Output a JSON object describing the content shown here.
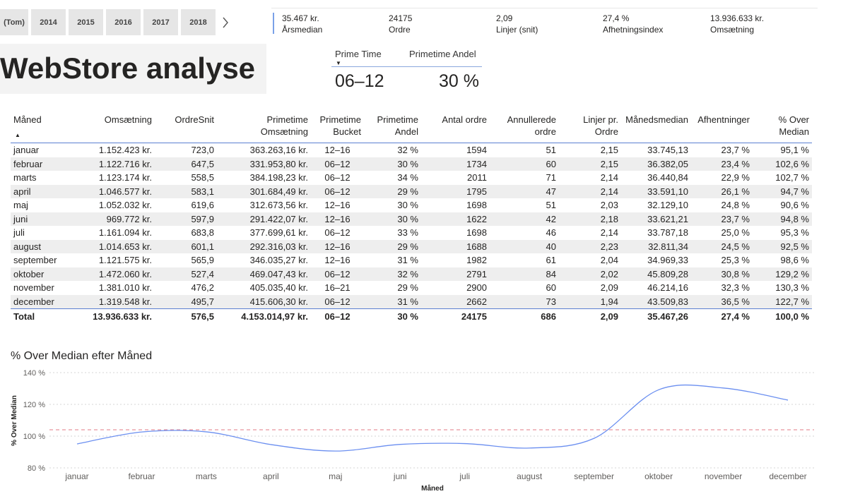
{
  "year_slicer": {
    "items": [
      "(Tom)",
      "2014",
      "2015",
      "2016",
      "2017",
      "2018"
    ],
    "next_icon": "chevron-right-icon"
  },
  "kpis": [
    {
      "value": "35.467 kr.",
      "label": "Årsmedian"
    },
    {
      "value": "24175",
      "label": "Ordre"
    },
    {
      "value": "2,09",
      "label": "Linjer (snit)"
    },
    {
      "value": "27,4 %",
      "label": "Afhetningsindex"
    },
    {
      "value": "13.936.633 kr.",
      "label": "Omsætning"
    }
  ],
  "page_title": "WebStore analyse",
  "prime_card": {
    "header_time": "Prime Time",
    "header_share": "Primetime Andel",
    "time": "06–12",
    "share": "30 %"
  },
  "table": {
    "headers": [
      "Måned",
      "Omsætning",
      "OrdreSnit",
      "Primetime Omsætning",
      "Primetime Bucket",
      "Primetime Andel",
      "Antal ordre",
      "Annullerede ordre",
      "Linjer pr. Ordre",
      "Månedsmedian",
      "Afhentninger",
      "% Over Median"
    ],
    "rows": [
      [
        "januar",
        "1.152.423 kr.",
        "723,0",
        "363.263,16 kr.",
        "12–16",
        "32 %",
        "1594",
        "51",
        "2,15",
        "33.745,13",
        "23,7 %",
        "95,1 %"
      ],
      [
        "februar",
        "1.122.716 kr.",
        "647,5",
        "331.953,80 kr.",
        "06–12",
        "30 %",
        "1734",
        "60",
        "2,15",
        "36.382,05",
        "23,4 %",
        "102,6 %"
      ],
      [
        "marts",
        "1.123.174 kr.",
        "558,5",
        "384.198,23 kr.",
        "06–12",
        "34 %",
        "2011",
        "71",
        "2,14",
        "36.440,84",
        "22,9 %",
        "102,7 %"
      ],
      [
        "april",
        "1.046.577 kr.",
        "583,1",
        "301.684,49 kr.",
        "06–12",
        "29 %",
        "1795",
        "47",
        "2,14",
        "33.591,10",
        "26,1 %",
        "94,7 %"
      ],
      [
        "maj",
        "1.052.032 kr.",
        "619,6",
        "312.673,56 kr.",
        "12–16",
        "30 %",
        "1698",
        "51",
        "2,03",
        "32.129,10",
        "24,8 %",
        "90,6 %"
      ],
      [
        "juni",
        "969.772 kr.",
        "597,9",
        "291.422,07 kr.",
        "12–16",
        "30 %",
        "1622",
        "42",
        "2,18",
        "33.621,21",
        "23,7 %",
        "94,8 %"
      ],
      [
        "juli",
        "1.161.094 kr.",
        "683,8",
        "377.699,61 kr.",
        "06–12",
        "33 %",
        "1698",
        "46",
        "2,14",
        "33.787,18",
        "25,0 %",
        "95,3 %"
      ],
      [
        "august",
        "1.014.653 kr.",
        "601,1",
        "292.316,03 kr.",
        "12–16",
        "29 %",
        "1688",
        "40",
        "2,23",
        "32.811,34",
        "24,5 %",
        "92,5 %"
      ],
      [
        "september",
        "1.121.575 kr.",
        "565,9",
        "346.035,27 kr.",
        "12–16",
        "31 %",
        "1982",
        "61",
        "2,04",
        "34.969,33",
        "25,3 %",
        "98,6 %"
      ],
      [
        "oktober",
        "1.472.060 kr.",
        "527,4",
        "469.047,43 kr.",
        "06–12",
        "32 %",
        "2791",
        "84",
        "2,02",
        "45.809,28",
        "30,8 %",
        "129,2 %"
      ],
      [
        "november",
        "1.381.010 kr.",
        "476,2",
        "405.035,40 kr.",
        "16–21",
        "29 %",
        "2900",
        "60",
        "2,09",
        "46.214,16",
        "32,3 %",
        "130,3 %"
      ],
      [
        "december",
        "1.319.548 kr.",
        "495,7",
        "415.606,30 kr.",
        "06–12",
        "31 %",
        "2662",
        "73",
        "1,94",
        "43.509,83",
        "36,5 %",
        "122,7 %"
      ]
    ],
    "total": [
      "Total",
      "13.936.633 kr.",
      "576,5",
      "4.153.014,97 kr.",
      "06–12",
      "30 %",
      "24175",
      "686",
      "2,09",
      "35.467,26",
      "27,4 %",
      "100,0 %"
    ]
  },
  "chart_data": {
    "type": "line",
    "title": "% Over Median efter Måned",
    "xlabel": "Måned",
    "ylabel": "% Over Median",
    "categories": [
      "januar",
      "februar",
      "marts",
      "april",
      "maj",
      "juni",
      "juli",
      "august",
      "september",
      "oktober",
      "november",
      "december"
    ],
    "series": [
      {
        "values": [
          95.1,
          102.6,
          102.7,
          94.7,
          90.6,
          94.8,
          95.3,
          92.5,
          98.6,
          129.2,
          130.3,
          122.7
        ]
      }
    ],
    "reference_line": 104,
    "yticks": [
      "80 %",
      "100 %",
      "120 %",
      "140 %"
    ],
    "ylim": [
      80,
      140
    ],
    "grid": true,
    "line_color": "#6b8ff0",
    "reference_color": "#e07a85"
  }
}
